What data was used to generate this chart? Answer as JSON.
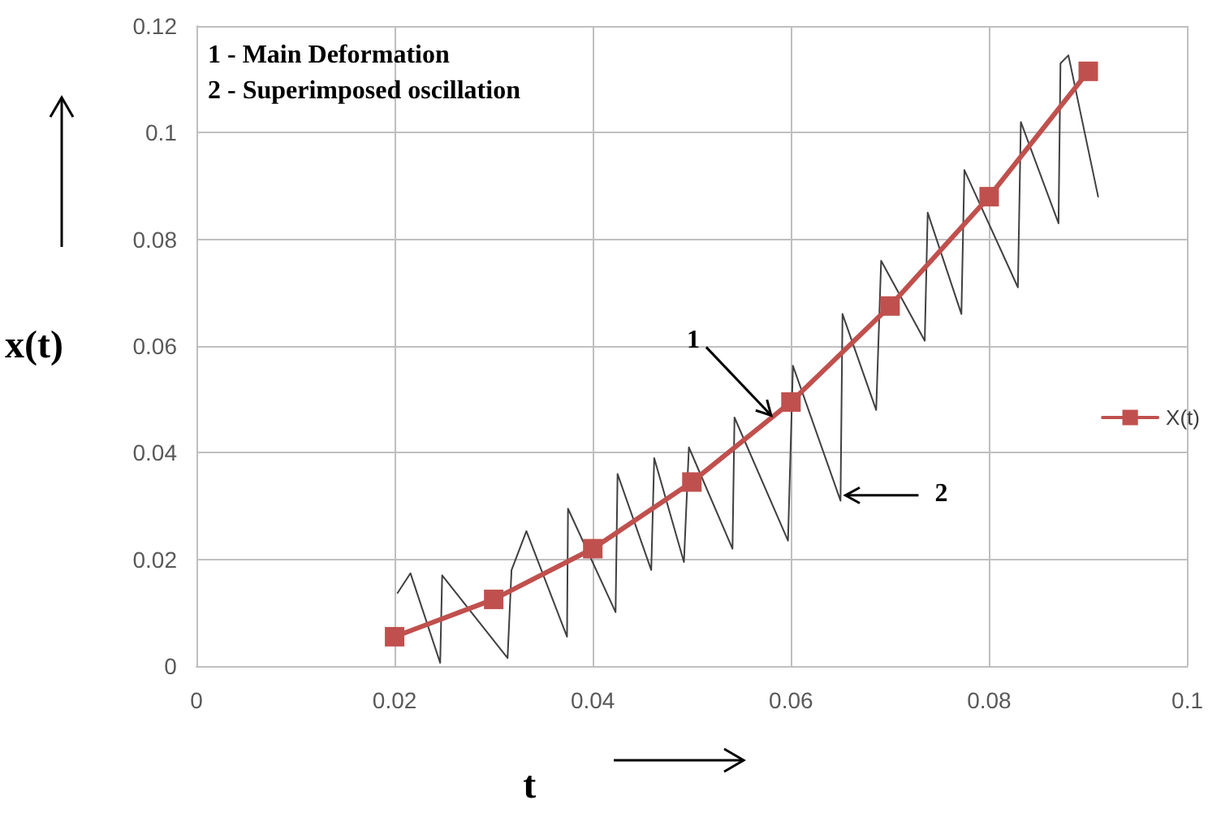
{
  "chart_data": {
    "type": "line",
    "xlabel": "t",
    "ylabel": "x(t)",
    "xlim": [
      0,
      0.1
    ],
    "xticks": [
      0,
      0.02,
      0.04,
      0.06,
      0.08,
      0.1
    ],
    "ylim": [
      0,
      0.12
    ],
    "yticks": [
      0,
      0.02,
      0.04,
      0.06,
      0.08,
      0.1,
      0.12
    ],
    "grid": true,
    "legend": "right",
    "annotations": [
      "1 - Main Deformation",
      "2 - Superimposed oscillation",
      {
        "text": "1",
        "x": 0.058,
        "y": 0.047
      },
      {
        "text": "2",
        "x": 0.0655,
        "y": 0.032
      }
    ],
    "series": [
      {
        "name": "X(t)",
        "color": "#c0504d",
        "marker": "square",
        "x": [
          0.02,
          0.03,
          0.04,
          0.05,
          0.06,
          0.07,
          0.08,
          0.09
        ],
        "values": [
          0.0055,
          0.0125,
          0.022,
          0.0345,
          0.0495,
          0.0675,
          0.088,
          0.1115
        ]
      },
      {
        "color": "#404040",
        "marker": "none",
        "x": [
          0.0203,
          0.0216,
          0.0246,
          0.0248,
          0.0314,
          0.0318,
          0.0333,
          0.0374,
          0.0375,
          0.0423,
          0.0425,
          0.0459,
          0.0462,
          0.0492,
          0.0497,
          0.0541,
          0.0543,
          0.0597,
          0.0602,
          0.065,
          0.0652,
          0.0686,
          0.0691,
          0.0735,
          0.0738,
          0.0772,
          0.0775,
          0.0829,
          0.0832,
          0.087,
          0.0872,
          0.088,
          0.091
        ],
        "values": [
          0.0137,
          0.0174,
          0.0006,
          0.017,
          0.0015,
          0.018,
          0.0253,
          0.0055,
          0.0295,
          0.0101,
          0.036,
          0.018,
          0.039,
          0.0195,
          0.041,
          0.022,
          0.0466,
          0.0235,
          0.0563,
          0.031,
          0.066,
          0.048,
          0.076,
          0.061,
          0.085,
          0.066,
          0.093,
          0.071,
          0.102,
          0.083,
          0.113,
          0.1145,
          0.088
        ]
      }
    ]
  }
}
